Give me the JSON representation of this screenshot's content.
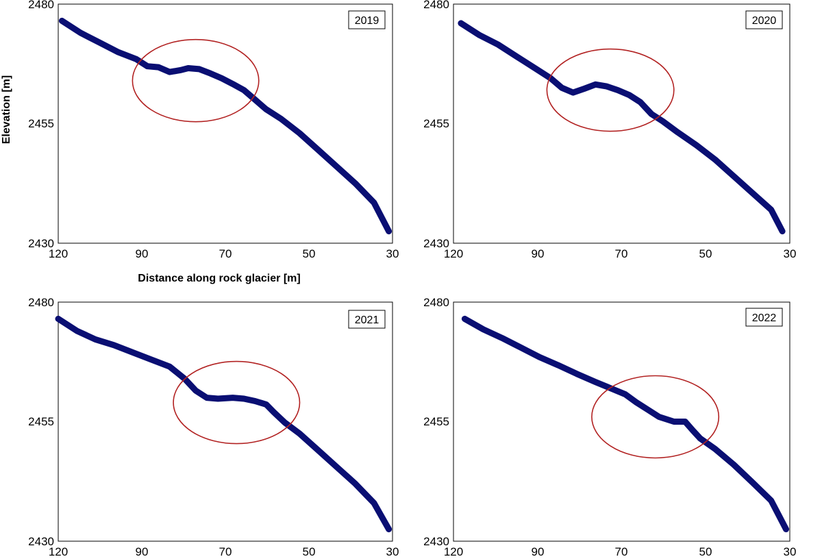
{
  "chart_data": [
    {
      "type": "scatter",
      "year_label": "2019",
      "xlabel": "Distance along rock glacier [m]",
      "ylabel": "Elevation [m]",
      "xlim": [
        120,
        30
      ],
      "ylim": [
        2430,
        2480
      ],
      "x_ticks": [
        "120",
        "90",
        "70",
        "50",
        "30"
      ],
      "y_ticks": [
        "2480",
        "2455",
        "2430"
      ],
      "grid": false,
      "series": [
        {
          "color": "#0a0f73",
          "points": [
            [
              119,
              2476.5
            ],
            [
              114,
              2474
            ],
            [
              109,
              2472
            ],
            [
              104,
              2470
            ],
            [
              99,
              2468.5
            ],
            [
              96,
              2467
            ],
            [
              93,
              2466.8
            ],
            [
              90,
              2465.8
            ],
            [
              87,
              2466.2
            ],
            [
              85,
              2466.6
            ],
            [
              82,
              2466.4
            ],
            [
              79,
              2465.5
            ],
            [
              76,
              2464.5
            ],
            [
              73,
              2463.3
            ],
            [
              70,
              2462
            ],
            [
              67,
              2460
            ],
            [
              64,
              2458
            ],
            [
              60,
              2456
            ],
            [
              55,
              2453
            ],
            [
              50,
              2449.5
            ],
            [
              45,
              2446
            ],
            [
              40,
              2442.5
            ],
            [
              35,
              2438.5
            ],
            [
              31,
              2432.5
            ]
          ]
        }
      ],
      "annotation": {
        "shape": "ellipse",
        "color": "#b22222",
        "center": [
          83,
          2464
        ],
        "x_radius": 17,
        "y_radius": 8.6
      }
    },
    {
      "type": "scatter",
      "year_label": "2020",
      "xlabel": "",
      "ylabel": "",
      "xlim": [
        120,
        30
      ],
      "ylim": [
        2430,
        2480
      ],
      "x_ticks": [
        "120",
        "90",
        "70",
        "50",
        "30"
      ],
      "y_ticks": [
        "2480",
        "2455",
        "2430"
      ],
      "grid": false,
      "series": [
        {
          "color": "#0a0f73",
          "points": [
            [
              118,
              2476
            ],
            [
              113,
              2473.5
            ],
            [
              108,
              2471.5
            ],
            [
              103,
              2469
            ],
            [
              98,
              2466.5
            ],
            [
              94,
              2464.5
            ],
            [
              91,
              2462.5
            ],
            [
              88,
              2461.5
            ],
            [
              85,
              2462.3
            ],
            [
              82,
              2463.2
            ],
            [
              79,
              2462.8
            ],
            [
              76,
              2462
            ],
            [
              73,
              2461
            ],
            [
              70,
              2459.5
            ],
            [
              67,
              2457
            ],
            [
              64,
              2455.5
            ],
            [
              60,
              2453.2
            ],
            [
              55,
              2450.5
            ],
            [
              50,
              2447.5
            ],
            [
              45,
              2444
            ],
            [
              40,
              2440.5
            ],
            [
              35,
              2437
            ],
            [
              32,
              2432.5
            ]
          ]
        }
      ],
      "annotation": {
        "shape": "ellipse",
        "color": "#b22222",
        "center": [
          78,
          2462
        ],
        "x_radius": 17,
        "y_radius": 8.6
      }
    },
    {
      "type": "scatter",
      "year_label": "2021",
      "xlabel": "",
      "ylabel": "",
      "xlim": [
        120,
        30
      ],
      "ylim": [
        2430,
        2480
      ],
      "x_ticks": [
        "120",
        "90",
        "70",
        "50",
        "30"
      ],
      "y_ticks": [
        "2480",
        "2455",
        "2430"
      ],
      "grid": false,
      "series": [
        {
          "color": "#0a0f73",
          "points": [
            [
              120,
              2476.5
            ],
            [
              115,
              2474
            ],
            [
              110,
              2472.2
            ],
            [
              105,
              2471
            ],
            [
              100,
              2469.5
            ],
            [
              95,
              2468
            ],
            [
              90,
              2466.5
            ],
            [
              86,
              2464
            ],
            [
              83,
              2461.5
            ],
            [
              80,
              2460
            ],
            [
              77,
              2459.8
            ],
            [
              73,
              2460
            ],
            [
              70,
              2459.8
            ],
            [
              67,
              2459.3
            ],
            [
              64,
              2458.6
            ],
            [
              62,
              2457
            ],
            [
              59,
              2454.8
            ],
            [
              55,
              2452.5
            ],
            [
              50,
              2449
            ],
            [
              45,
              2445.5
            ],
            [
              40,
              2442
            ],
            [
              35,
              2438
            ],
            [
              31,
              2432.5
            ]
          ]
        }
      ],
      "annotation": {
        "shape": "ellipse",
        "color": "#b22222",
        "center": [
          72,
          2459
        ],
        "x_radius": 17,
        "y_radius": 8.6
      }
    },
    {
      "type": "scatter",
      "year_label": "2022",
      "xlabel": "",
      "ylabel": "",
      "xlim": [
        120,
        30
      ],
      "ylim": [
        2430,
        2480
      ],
      "x_ticks": [
        "120",
        "90",
        "70",
        "50",
        "30"
      ],
      "y_ticks": [
        "2480",
        "2455",
        "2430"
      ],
      "grid": false,
      "series": [
        {
          "color": "#0a0f73",
          "points": [
            [
              117,
              2476.5
            ],
            [
              112,
              2474.3
            ],
            [
              107,
              2472.5
            ],
            [
              102,
              2470.5
            ],
            [
              97,
              2468.5
            ],
            [
              92,
              2466.8
            ],
            [
              87,
              2465
            ],
            [
              82,
              2463.3
            ],
            [
              78,
              2462
            ],
            [
              74,
              2460.7
            ],
            [
              71,
              2459
            ],
            [
              68,
              2457.5
            ],
            [
              65,
              2456
            ],
            [
              61,
              2455
            ],
            [
              58,
              2455
            ],
            [
              56,
              2453.2
            ],
            [
              54,
              2451.5
            ],
            [
              50,
              2449.3
            ],
            [
              45,
              2446
            ],
            [
              40,
              2442.3
            ],
            [
              35,
              2438.5
            ],
            [
              31,
              2432.5
            ]
          ]
        }
      ],
      "annotation": {
        "shape": "ellipse",
        "color": "#b22222",
        "center": [
          66,
          2456
        ],
        "x_radius": 17,
        "y_radius": 8.6
      }
    }
  ]
}
